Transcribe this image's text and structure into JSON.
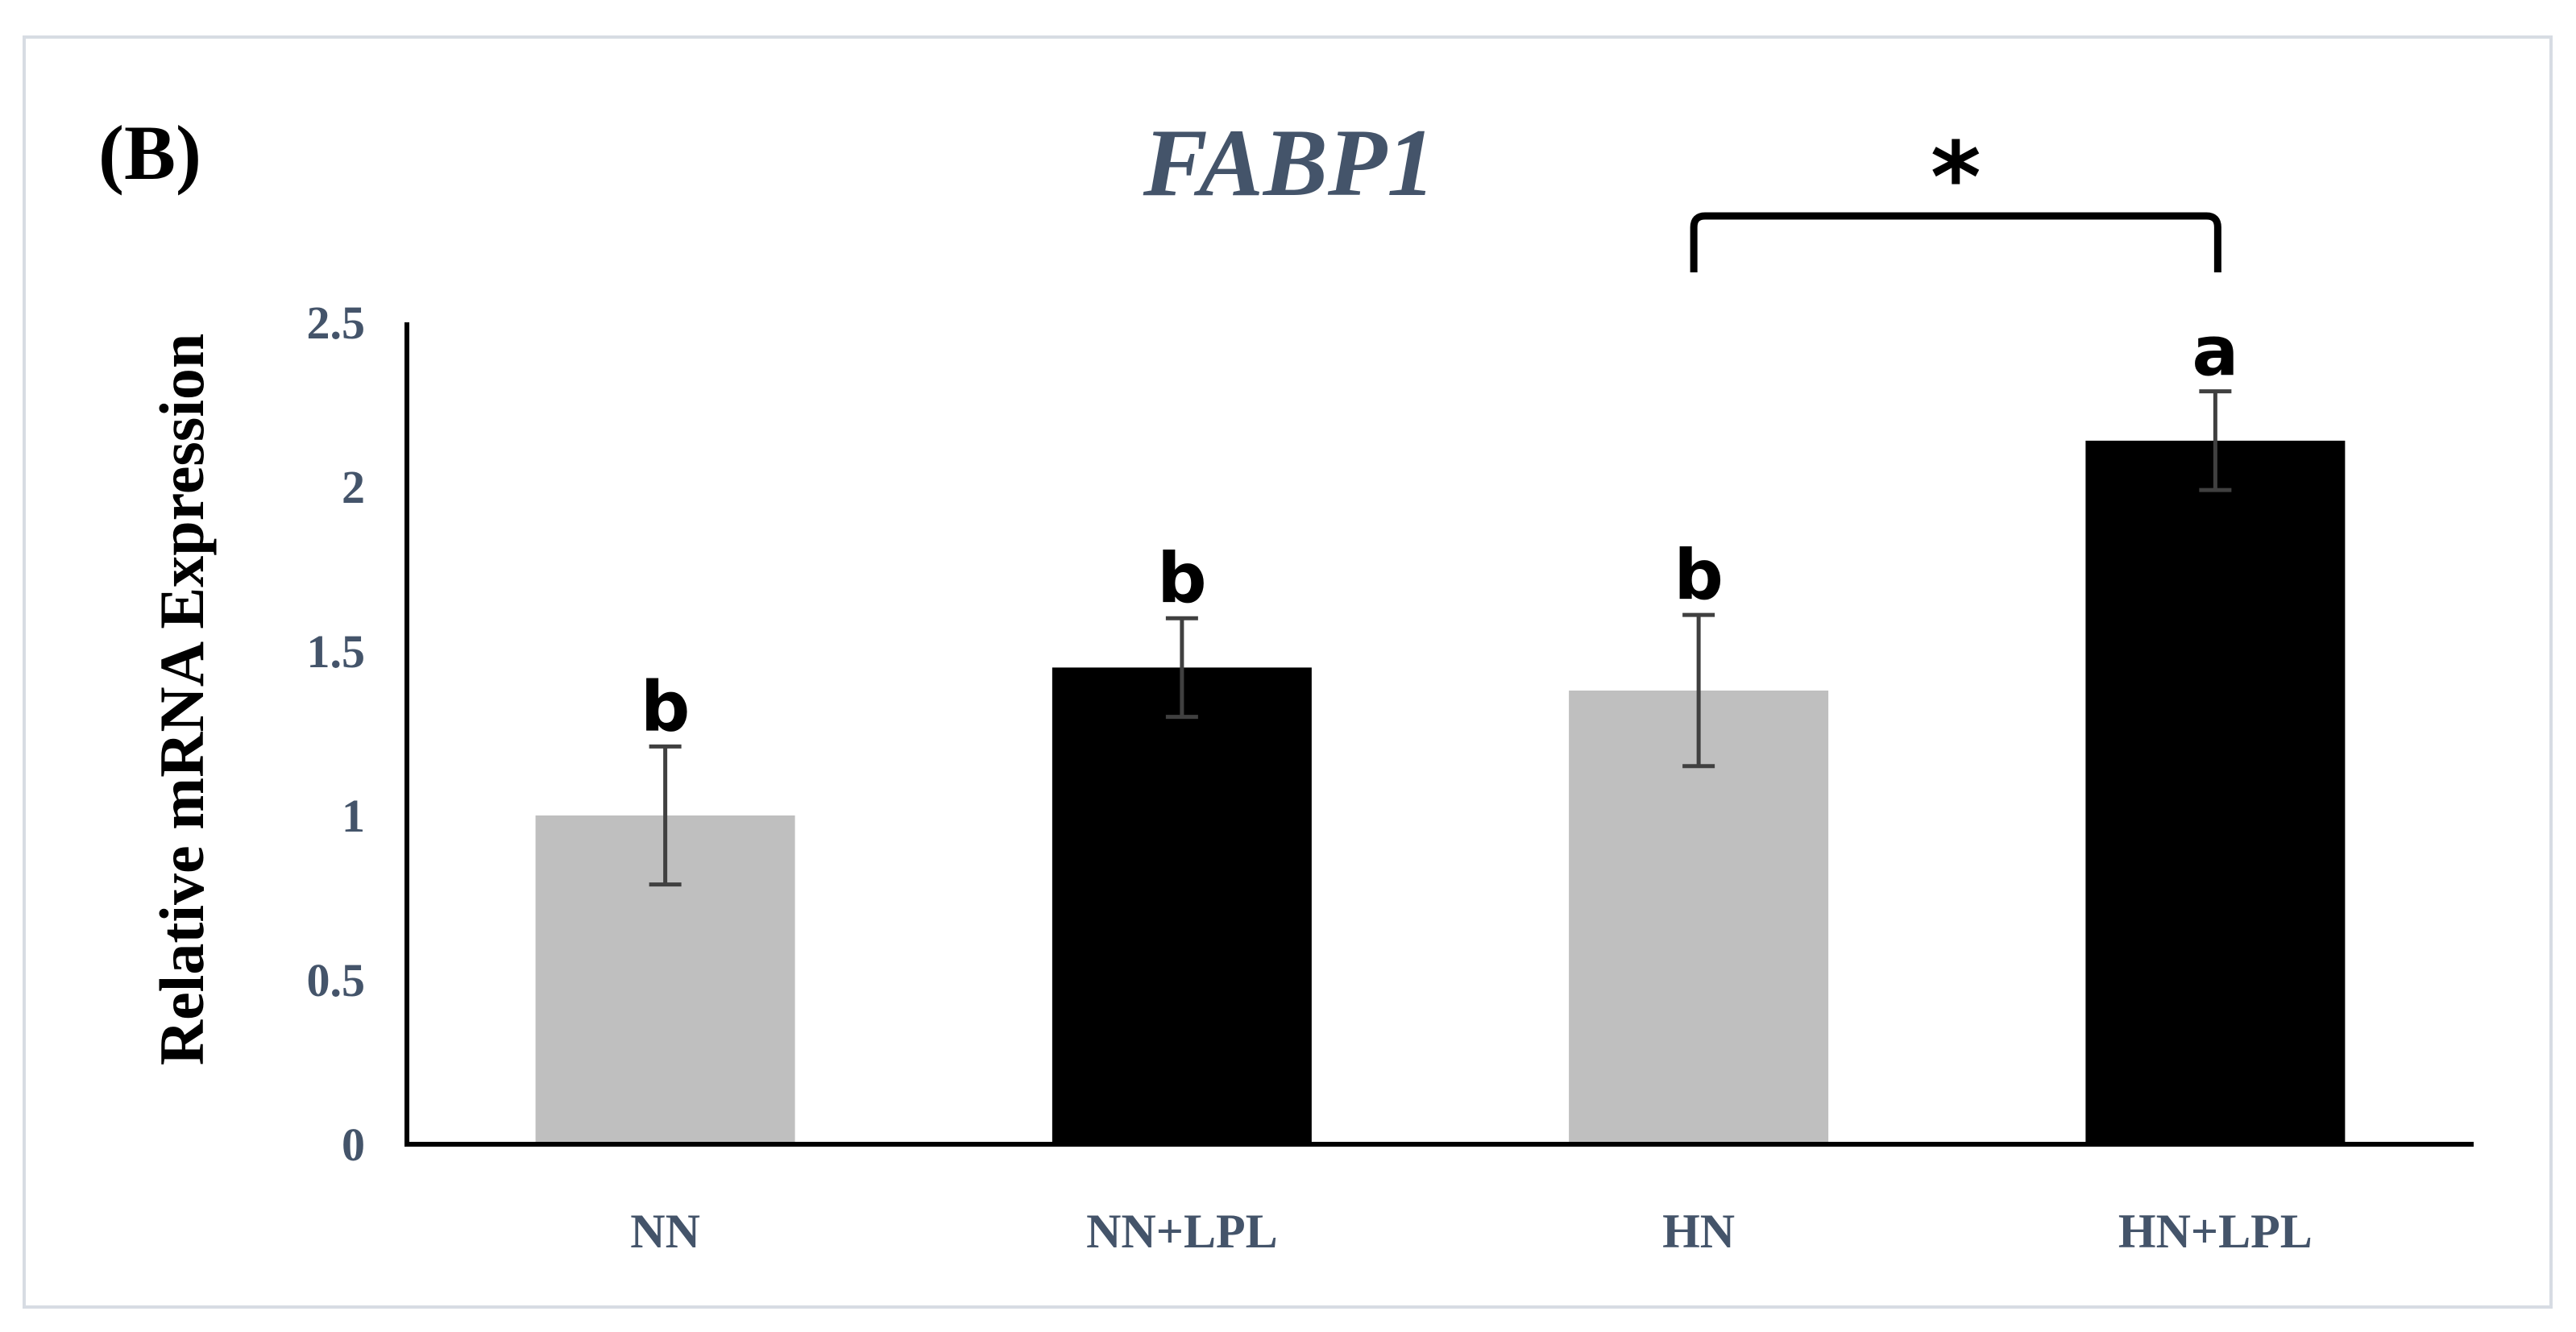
{
  "panel_label": "(B)",
  "chart_data": {
    "type": "bar",
    "title": "FABP1",
    "xlabel": "",
    "ylabel": "Relative mRNA Expression",
    "categories": [
      "NN",
      "NN+LPL",
      "HN",
      "HN+LPL"
    ],
    "values": [
      1.0,
      1.45,
      1.38,
      2.14
    ],
    "errors": [
      0.21,
      0.15,
      0.23,
      0.15
    ],
    "bar_colors": [
      "#bfbfbf",
      "#000000",
      "#bfbfbf",
      "#000000"
    ],
    "significance_letters": [
      "b",
      "b",
      "b",
      "a"
    ],
    "ylim": [
      0,
      2.5
    ],
    "yticks": [
      "0",
      "0.5",
      "1",
      "1.5",
      "2",
      "2.5"
    ],
    "ytick_values": [
      0,
      0.5,
      1,
      1.5,
      2,
      2.5
    ],
    "grid": false,
    "annotation": {
      "text": "*",
      "between": [
        "HN",
        "HN+LPL"
      ]
    }
  }
}
